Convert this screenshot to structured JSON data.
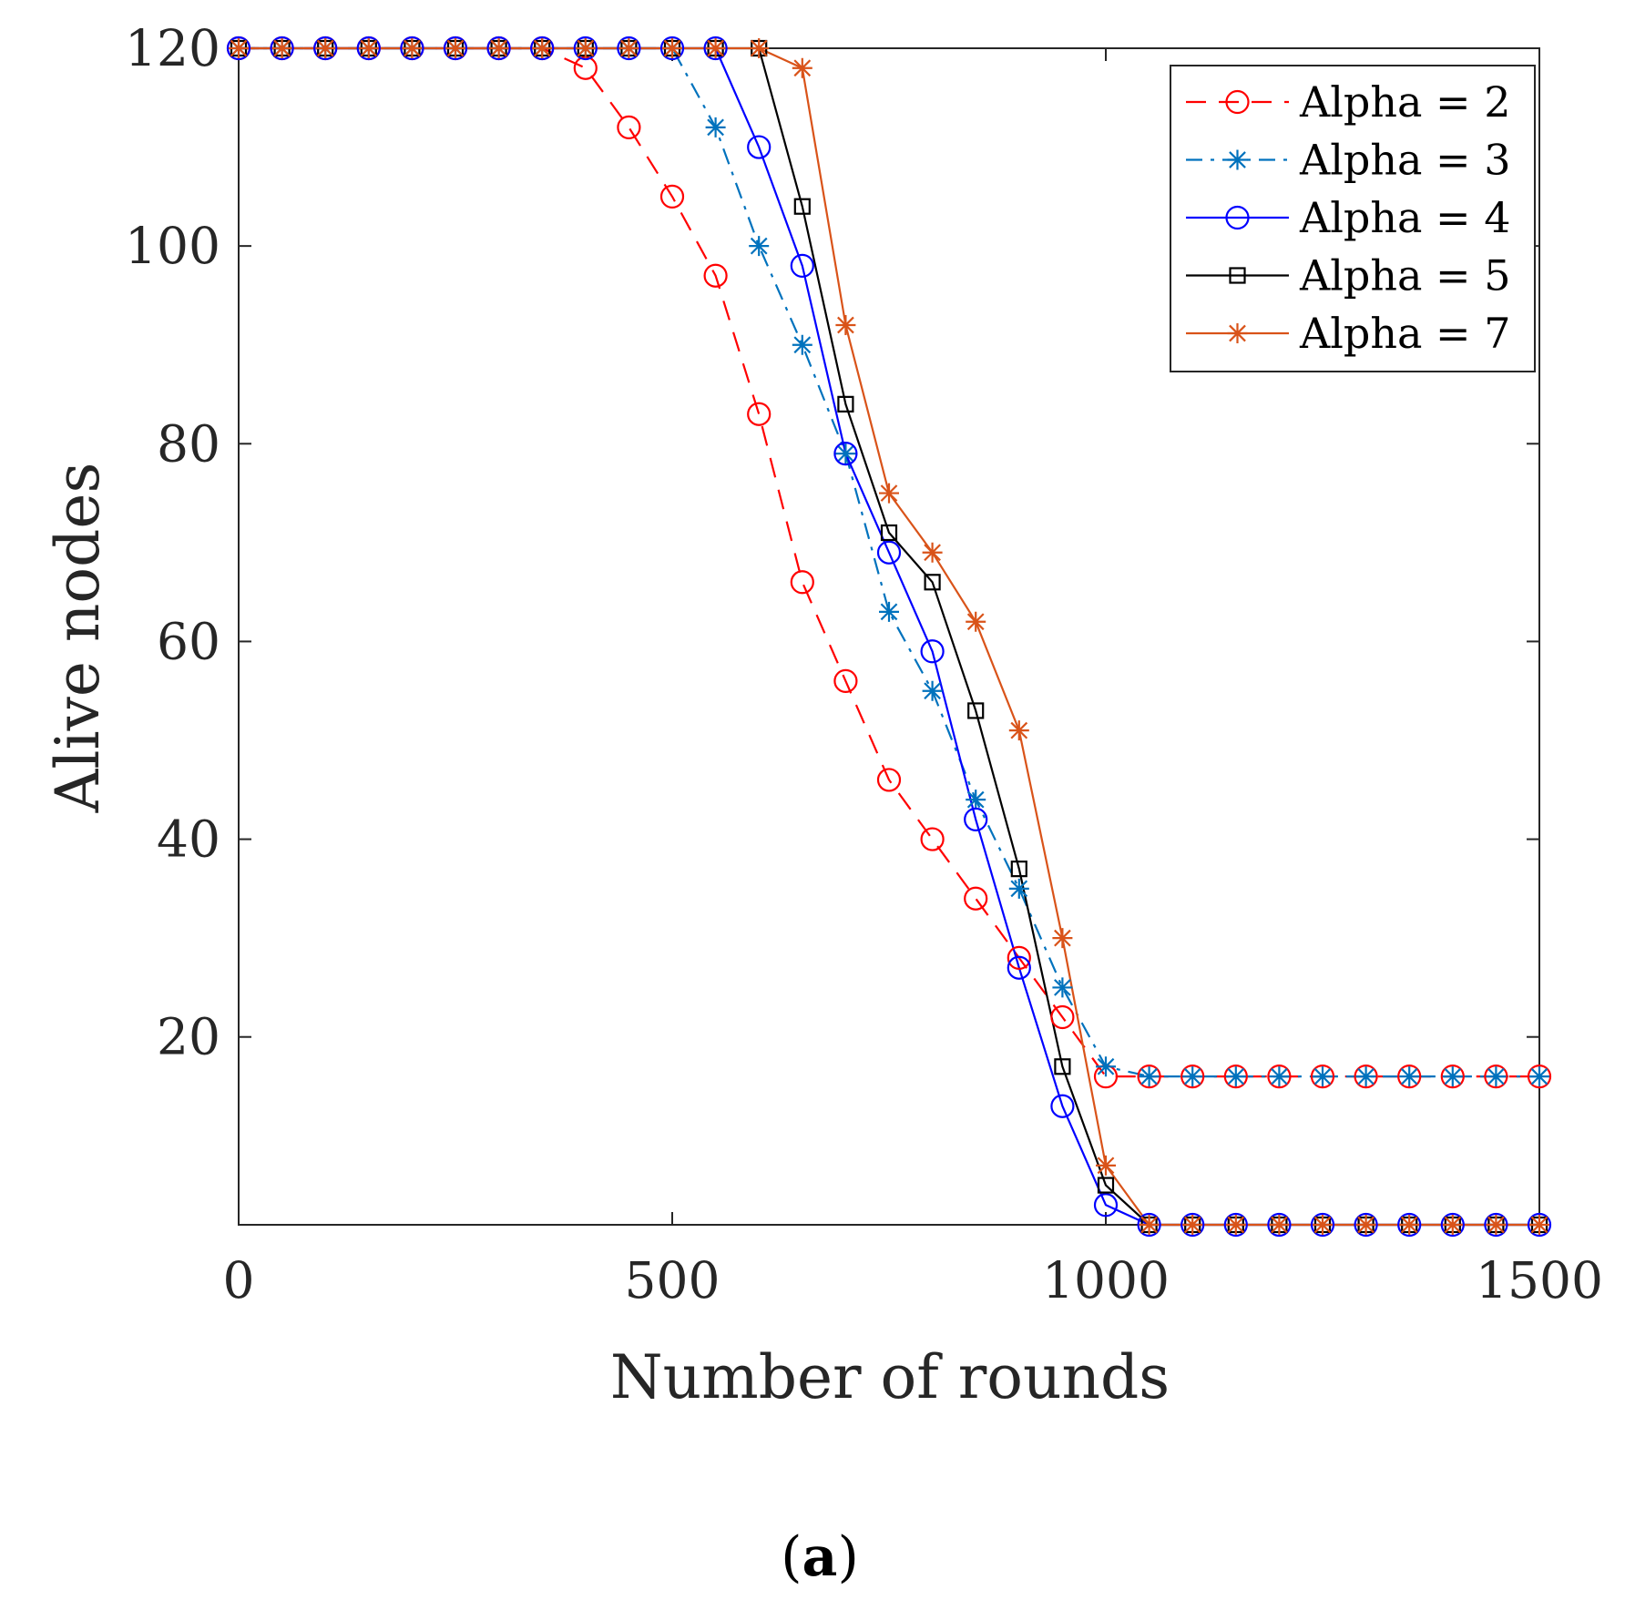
{
  "chart_data": {
    "type": "line",
    "title": "",
    "xlabel": "Number of rounds",
    "ylabel": "Alive nodes",
    "xlim": [
      0,
      1500
    ],
    "ylim": [
      1,
      120
    ],
    "xticks": [
      0,
      500,
      1000,
      1500
    ],
    "yticks": [
      20,
      40,
      60,
      80,
      100,
      120
    ],
    "legend_position": "top-right",
    "x": [
      0,
      50,
      100,
      150,
      200,
      250,
      300,
      350,
      400,
      450,
      500,
      550,
      600,
      650,
      700,
      750,
      800,
      850,
      900,
      950,
      1000,
      1050,
      1100,
      1150,
      1200,
      1250,
      1300,
      1350,
      1400,
      1450,
      1500
    ],
    "series": [
      {
        "name": "Alpha = 2",
        "color": "#ff0000",
        "dash": "dashed",
        "marker": "circle",
        "values": [
          120,
          120,
          120,
          120,
          120,
          120,
          120,
          120,
          118,
          112,
          105,
          97,
          83,
          66,
          56,
          46,
          40,
          34,
          28,
          22,
          16,
          16,
          16,
          16,
          16,
          16,
          16,
          16,
          16,
          16,
          16
        ]
      },
      {
        "name": "Alpha = 3",
        "color": "#0072bd",
        "dash": "dashdot",
        "marker": "asterisk",
        "values": [
          120,
          120,
          120,
          120,
          120,
          120,
          120,
          120,
          120,
          120,
          120,
          112,
          100,
          90,
          79,
          63,
          55,
          44,
          35,
          25,
          17,
          16,
          16,
          16,
          16,
          16,
          16,
          16,
          16,
          16,
          16
        ]
      },
      {
        "name": "Alpha = 4",
        "color": "#0000ff",
        "dash": "solid",
        "marker": "circle",
        "values": [
          120,
          120,
          120,
          120,
          120,
          120,
          120,
          120,
          120,
          120,
          120,
          120,
          110,
          98,
          79,
          69,
          59,
          42,
          27,
          13,
          3,
          1,
          1,
          1,
          1,
          1,
          1,
          1,
          1,
          1,
          1
        ]
      },
      {
        "name": "Alpha = 5",
        "color": "#000000",
        "dash": "solid",
        "marker": "square",
        "values": [
          120,
          120,
          120,
          120,
          120,
          120,
          120,
          120,
          120,
          120,
          120,
          120,
          120,
          104,
          84,
          71,
          66,
          53,
          37,
          17,
          5,
          1,
          1,
          1,
          1,
          1,
          1,
          1,
          1,
          1,
          1
        ]
      },
      {
        "name": "Alpha = 7",
        "color": "#d95319",
        "dash": "solid",
        "marker": "asterisk",
        "values": [
          120,
          120,
          120,
          120,
          120,
          120,
          120,
          120,
          120,
          120,
          120,
          120,
          120,
          118,
          92,
          75,
          69,
          62,
          51,
          30,
          7,
          1,
          1,
          1,
          1,
          1,
          1,
          1,
          1,
          1,
          1
        ]
      }
    ]
  },
  "caption": {
    "open": "(",
    "letter": "a",
    "close": ")"
  }
}
